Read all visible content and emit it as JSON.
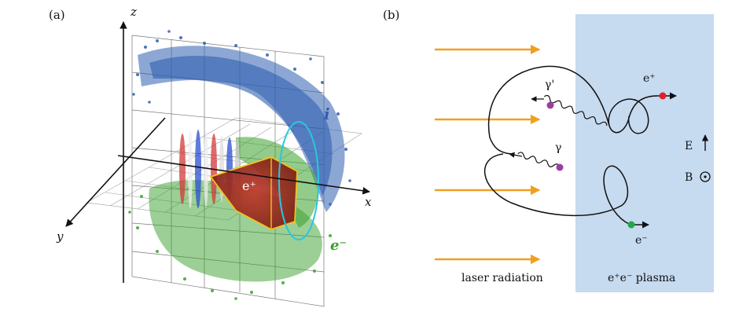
{
  "panel_a": {
    "label": "(a)",
    "axes": {
      "x": "x",
      "y": "y",
      "z": "z"
    },
    "species": {
      "ions": {
        "label": "i",
        "color": "#2f5fb0"
      },
      "electrons": {
        "label": "e⁻",
        "color": "#3aa02c"
      },
      "positrons": {
        "label": "e⁺",
        "color": "#a8281c"
      }
    },
    "contour_colors": {
      "yellow": "#f2c11d",
      "cyan": "#29c6e0"
    }
  },
  "panel_b": {
    "label": "(b)",
    "laser_label": "laser radiation",
    "plasma_label": "e⁺e⁻ plasma",
    "plasma_color": "#c6daf0",
    "arrow_color": "#f0a020",
    "photon1": "γ'",
    "photon2": "γ",
    "positron": "e⁺",
    "electron": "e⁻",
    "field_E": "E",
    "field_B": "B",
    "colors": {
      "photon": "#9a3fa0",
      "positron": "#e0202a",
      "electron": "#22a84a"
    }
  }
}
